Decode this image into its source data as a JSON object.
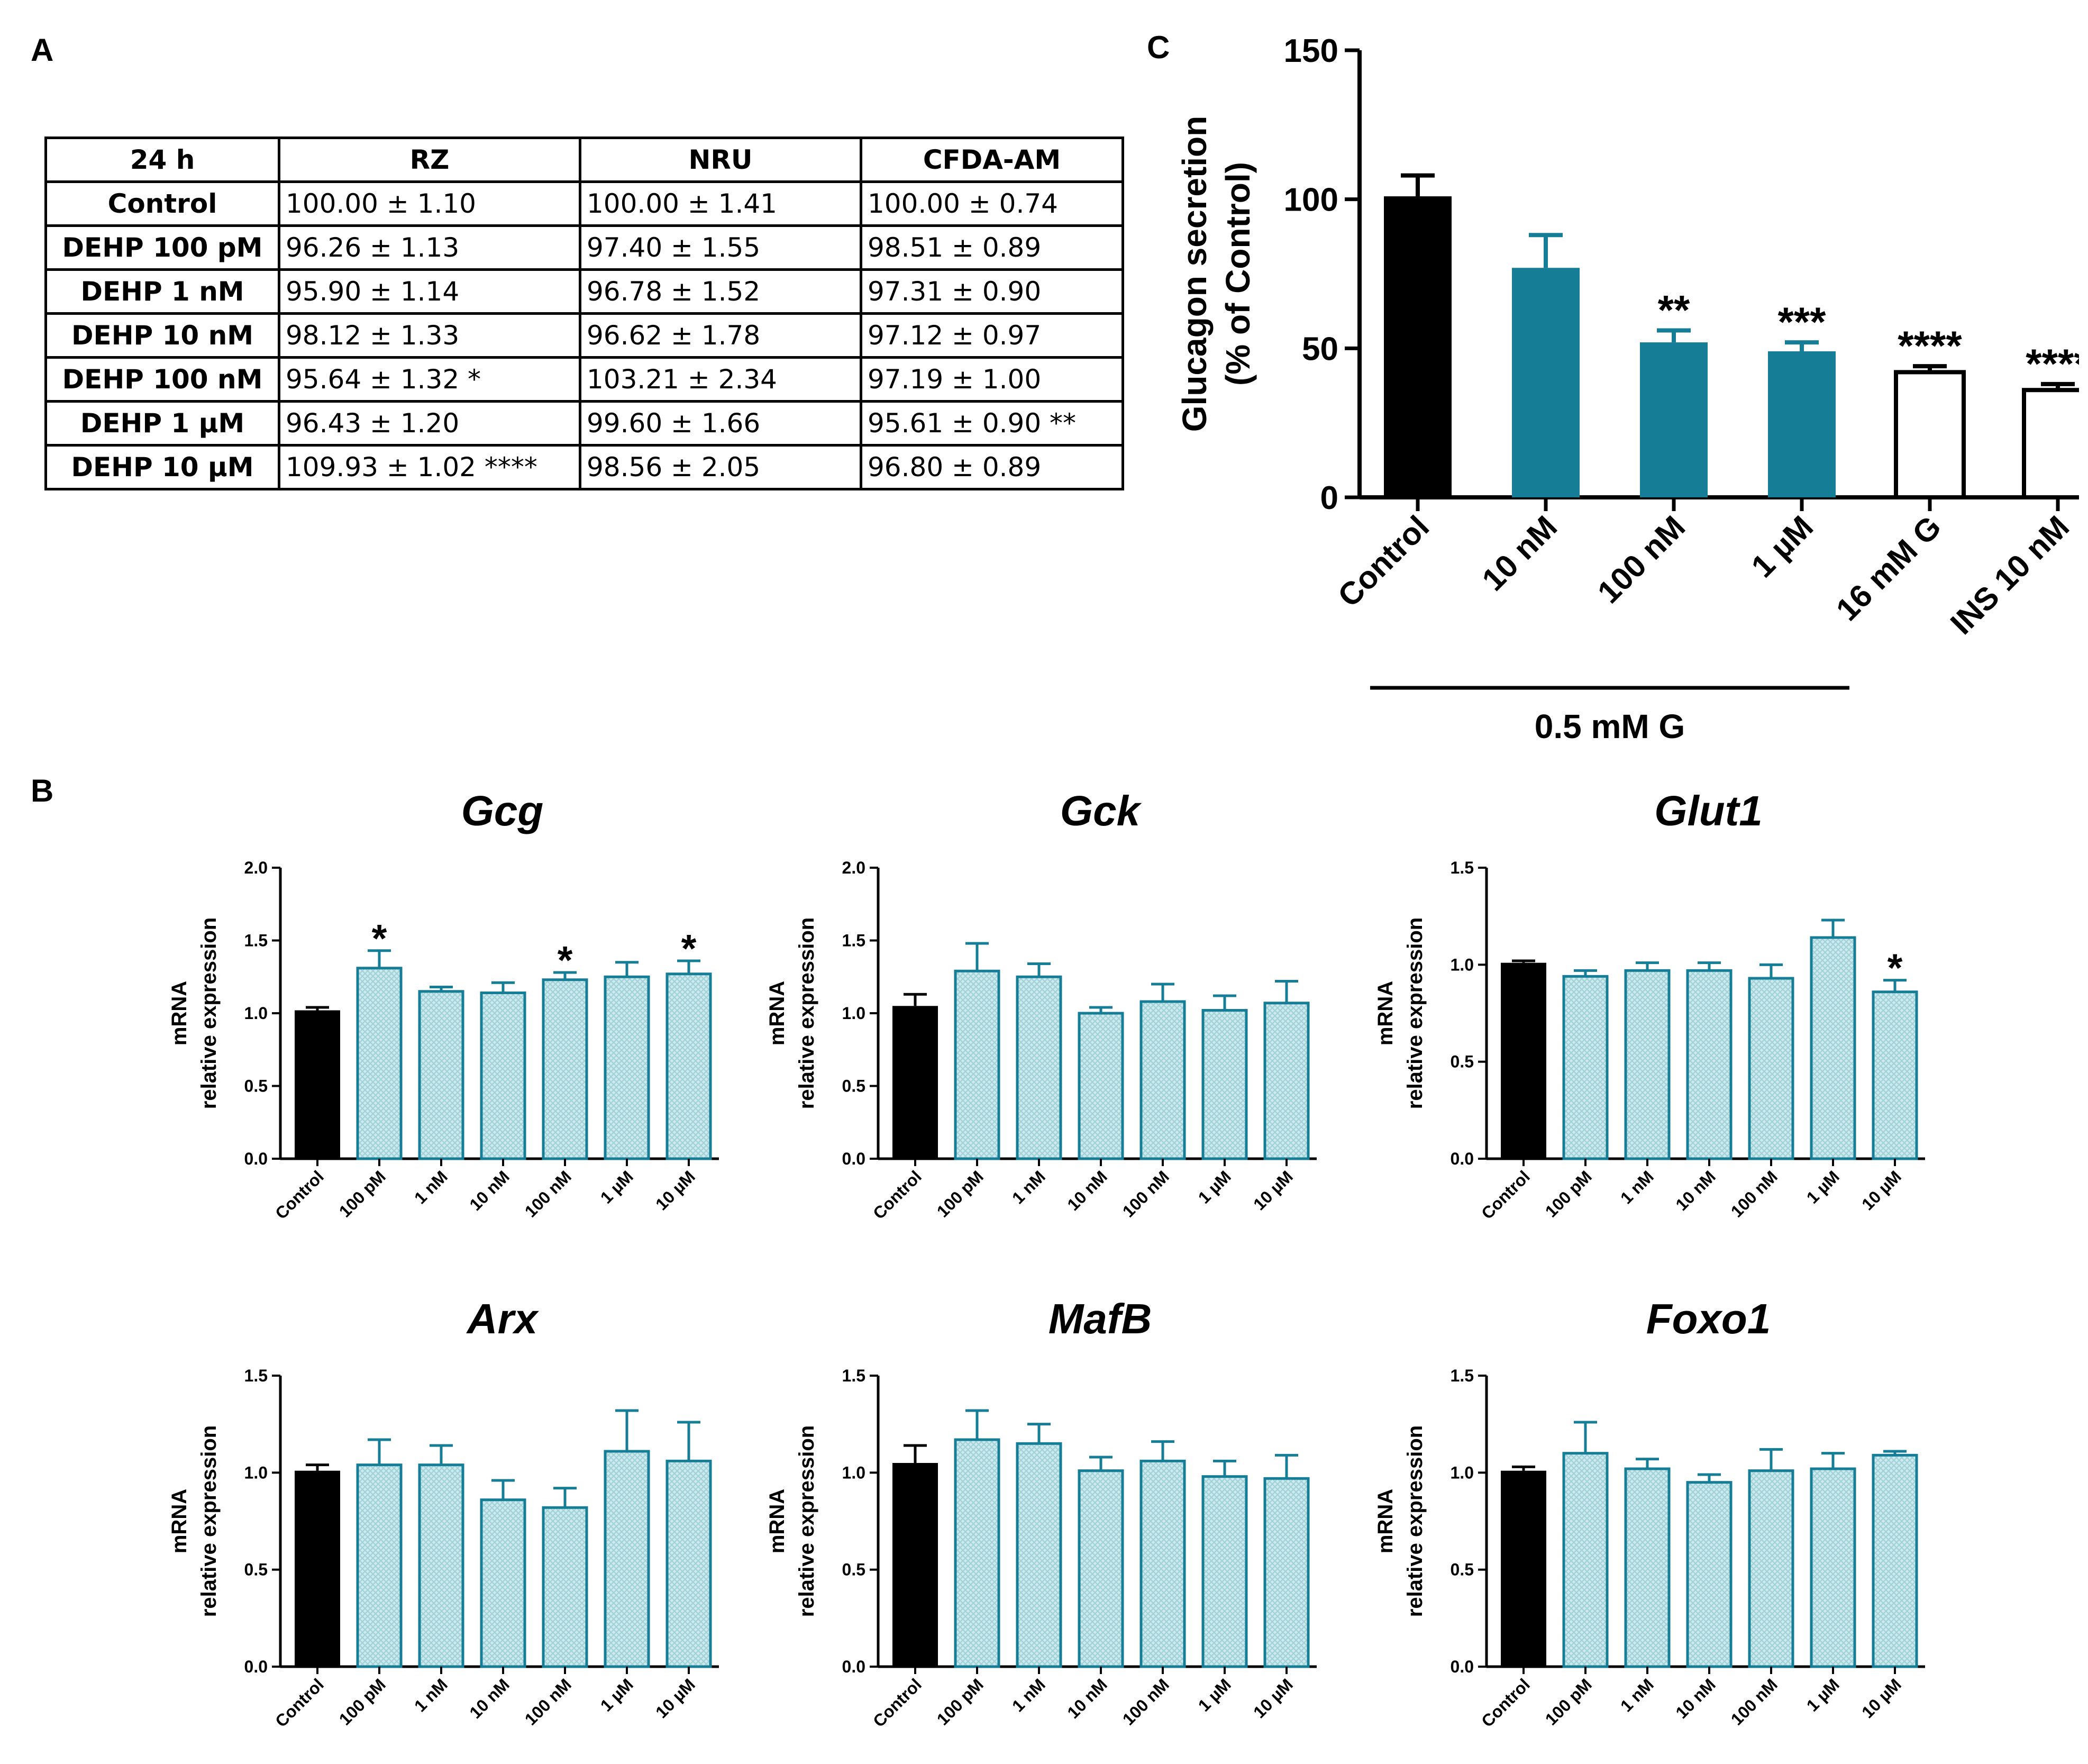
{
  "panels": {
    "a": "A",
    "b": "B",
    "c": "C"
  },
  "colors": {
    "teal": "#157e96",
    "hatch": "#9fd3d9",
    "black": "#000000"
  },
  "table_a": {
    "header": [
      "24 h",
      "RZ",
      "NRU",
      "CFDA-AM"
    ],
    "rows": [
      [
        "Control",
        "100.00 ± 1.10",
        "100.00 ± 1.41",
        "100.00 ± 0.74"
      ],
      [
        "DEHP 100 pM",
        "96.26 ± 1.13",
        "97.40 ± 1.55",
        "98.51 ± 0.89"
      ],
      [
        "DEHP 1 nM",
        "95.90 ± 1.14",
        "96.78 ± 1.52",
        "97.31 ± 0.90"
      ],
      [
        "DEHP 10 nM",
        "98.12 ± 1.33",
        "96.62 ± 1.78",
        "97.12 ± 0.97"
      ],
      [
        "DEHP 100 nM",
        "95.64 ± 1.32 *",
        "103.21 ± 2.34",
        "97.19 ± 1.00"
      ],
      [
        "DEHP 1 µM",
        "96.43 ± 1.20",
        "99.60 ± 1.66",
        "95.61 ± 0.90 **"
      ],
      [
        "DEHP 10 µM",
        "109.93 ± 1.02 ****",
        "98.56 ± 2.05",
        "96.80 ± 0.89"
      ]
    ]
  },
  "chart_data": [
    {
      "id": "C",
      "type": "bar",
      "ylabel": [
        "Glucagon secretion",
        "(% of Control)"
      ],
      "ylim": [
        0,
        150
      ],
      "yticks": [
        0,
        50,
        100,
        150
      ],
      "categories": [
        "Control",
        "10 nM",
        "100 nM",
        "1 µM",
        "16 mM G",
        "INS 10 nM"
      ],
      "values": [
        101,
        77,
        52,
        49,
        42,
        36
      ],
      "errors": [
        7,
        11,
        4,
        3,
        2,
        2
      ],
      "styles": [
        "black",
        "teal",
        "teal",
        "teal",
        "open",
        "open"
      ],
      "annotations": [
        "",
        "",
        "**",
        "***",
        "****",
        "****"
      ],
      "group_label": "0.5 mM G",
      "group_span": [
        0,
        3
      ]
    },
    {
      "id": "Gcg",
      "type": "bar",
      "title": "Gcg",
      "ylabel": [
        "mRNA",
        "relative expression"
      ],
      "ylim": [
        0,
        2.0
      ],
      "yticks": [
        "0.0",
        "0.5",
        "1.0",
        "1.5",
        "2.0"
      ],
      "categories": [
        "Control",
        "100 pM",
        "1 nM",
        "10 nM",
        "100 nM",
        "1 µM",
        "10 µM"
      ],
      "values": [
        1.02,
        1.31,
        1.15,
        1.14,
        1.23,
        1.25,
        1.27
      ],
      "errors": [
        0.02,
        0.12,
        0.03,
        0.07,
        0.05,
        0.1,
        0.09
      ],
      "annotations": [
        "",
        "*",
        "",
        "",
        "*",
        "",
        "*"
      ]
    },
    {
      "id": "Gck",
      "type": "bar",
      "title": "Gck",
      "ylabel": [
        "mRNA",
        "relative expression"
      ],
      "ylim": [
        0,
        2.0
      ],
      "yticks": [
        "0.0",
        "0.5",
        "1.0",
        "1.5",
        "2.0"
      ],
      "categories": [
        "Control",
        "100 pM",
        "1 nM",
        "10 nM",
        "100 nM",
        "1 µM",
        "10 µM"
      ],
      "values": [
        1.05,
        1.29,
        1.25,
        1.0,
        1.08,
        1.02,
        1.07
      ],
      "errors": [
        0.08,
        0.19,
        0.09,
        0.04,
        0.12,
        0.1,
        0.15
      ],
      "annotations": [
        "",
        "",
        "",
        "",
        "",
        "",
        ""
      ]
    },
    {
      "id": "Glut1",
      "type": "bar",
      "title": "Glut1",
      "ylabel": [
        "mRNA",
        "relative expression"
      ],
      "ylim": [
        0,
        1.5
      ],
      "yticks": [
        "0.0",
        "0.5",
        "1.0",
        "1.5"
      ],
      "categories": [
        "Control",
        "100 pM",
        "1 nM",
        "10 nM",
        "100 nM",
        "1 µM",
        "10 µM"
      ],
      "values": [
        1.01,
        0.94,
        0.97,
        0.97,
        0.93,
        1.14,
        0.86
      ],
      "errors": [
        0.01,
        0.03,
        0.04,
        0.04,
        0.07,
        0.09,
        0.06
      ],
      "annotations": [
        "",
        "",
        "",
        "",
        "",
        "",
        "*"
      ]
    },
    {
      "id": "Arx",
      "type": "bar",
      "title": "Arx",
      "ylabel": [
        "mRNA",
        "relative expression"
      ],
      "ylim": [
        0,
        1.5
      ],
      "yticks": [
        "0.0",
        "0.5",
        "1.0",
        "1.5"
      ],
      "categories": [
        "Control",
        "100 pM",
        "1 nM",
        "10 nM",
        "100 nM",
        "1 µM",
        "10 µM"
      ],
      "values": [
        1.01,
        1.04,
        1.04,
        0.86,
        0.82,
        1.11,
        1.06
      ],
      "errors": [
        0.03,
        0.13,
        0.1,
        0.1,
        0.1,
        0.21,
        0.2
      ],
      "annotations": [
        "",
        "",
        "",
        "",
        "",
        "",
        ""
      ]
    },
    {
      "id": "MafB",
      "type": "bar",
      "title": "MafB",
      "ylabel": [
        "mRNA",
        "relative expression"
      ],
      "ylim": [
        0,
        1.5
      ],
      "yticks": [
        "0.0",
        "0.5",
        "1.0",
        "1.5"
      ],
      "categories": [
        "Control",
        "100 pM",
        "1 nM",
        "10 nM",
        "100 nM",
        "1 µM",
        "10 µM"
      ],
      "values": [
        1.05,
        1.17,
        1.15,
        1.01,
        1.06,
        0.98,
        0.97
      ],
      "errors": [
        0.09,
        0.15,
        0.1,
        0.07,
        0.1,
        0.08,
        0.12
      ],
      "annotations": [
        "",
        "",
        "",
        "",
        "",
        "",
        ""
      ]
    },
    {
      "id": "Foxo1",
      "type": "bar",
      "title": "Foxo1",
      "ylabel": [
        "mRNA",
        "relative expression"
      ],
      "ylim": [
        0,
        1.5
      ],
      "yticks": [
        "0.0",
        "0.5",
        "1.0",
        "1.5"
      ],
      "categories": [
        "Control",
        "100 pM",
        "1 nM",
        "10 nM",
        "100 nM",
        "1 µM",
        "10 µM"
      ],
      "values": [
        1.01,
        1.1,
        1.02,
        0.95,
        1.01,
        1.02,
        1.09
      ],
      "errors": [
        0.02,
        0.16,
        0.05,
        0.04,
        0.11,
        0.08,
        0.02
      ],
      "annotations": [
        "",
        "",
        "",
        "",
        "",
        "",
        ""
      ]
    }
  ]
}
